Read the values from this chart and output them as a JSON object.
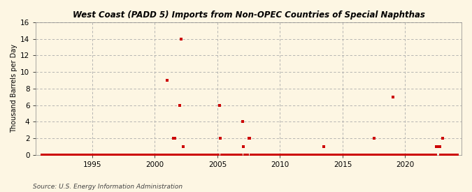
{
  "title": "West Coast (PADD 5) Imports from Non-OPEC Countries of Special Naphthas",
  "ylabel": "Thousand Barrels per Day",
  "source": "Source: U.S. Energy Information Administration",
  "background_color": "#fdf6e3",
  "plot_bg_color": "#fdf6e3",
  "marker_color": "#cc0000",
  "marker_size": 3,
  "ylim": [
    0,
    16
  ],
  "yticks": [
    0,
    2,
    4,
    6,
    8,
    10,
    12,
    14,
    16
  ],
  "xlim_start": 1990.5,
  "xlim_end": 2024.5,
  "xticks": [
    1995,
    2000,
    2005,
    2010,
    2015,
    2020
  ],
  "data_points": [
    [
      1991.0,
      0
    ],
    [
      1991.083,
      0
    ],
    [
      1991.167,
      0
    ],
    [
      1991.25,
      0
    ],
    [
      1991.333,
      0
    ],
    [
      1991.417,
      0
    ],
    [
      1991.5,
      0
    ],
    [
      1991.583,
      0
    ],
    [
      1991.667,
      0
    ],
    [
      1991.75,
      0
    ],
    [
      1991.833,
      0
    ],
    [
      1991.917,
      0
    ],
    [
      1992.0,
      0
    ],
    [
      1992.083,
      0
    ],
    [
      1992.167,
      0
    ],
    [
      1992.25,
      0
    ],
    [
      1992.333,
      0
    ],
    [
      1992.417,
      0
    ],
    [
      1992.5,
      0
    ],
    [
      1992.583,
      0
    ],
    [
      1992.667,
      0
    ],
    [
      1992.75,
      0
    ],
    [
      1992.833,
      0
    ],
    [
      1992.917,
      0
    ],
    [
      1993.0,
      0
    ],
    [
      1993.083,
      0
    ],
    [
      1993.167,
      0
    ],
    [
      1993.25,
      0
    ],
    [
      1993.333,
      0
    ],
    [
      1993.417,
      0
    ],
    [
      1993.5,
      0
    ],
    [
      1993.583,
      0
    ],
    [
      1993.667,
      0
    ],
    [
      1993.75,
      0
    ],
    [
      1993.833,
      0
    ],
    [
      1993.917,
      0
    ],
    [
      1994.0,
      0
    ],
    [
      1994.083,
      0
    ],
    [
      1994.167,
      0
    ],
    [
      1994.25,
      0
    ],
    [
      1994.333,
      0
    ],
    [
      1994.417,
      0
    ],
    [
      1994.5,
      0
    ],
    [
      1994.583,
      0
    ],
    [
      1994.667,
      0
    ],
    [
      1994.75,
      0
    ],
    [
      1994.833,
      0
    ],
    [
      1994.917,
      0
    ],
    [
      1995.0,
      0
    ],
    [
      1995.083,
      0
    ],
    [
      1995.167,
      0
    ],
    [
      1995.25,
      0
    ],
    [
      1995.333,
      0
    ],
    [
      1995.417,
      0
    ],
    [
      1995.5,
      0
    ],
    [
      1995.583,
      0
    ],
    [
      1995.667,
      0
    ],
    [
      1995.75,
      0
    ],
    [
      1995.833,
      0
    ],
    [
      1995.917,
      0
    ],
    [
      1996.0,
      0
    ],
    [
      1996.083,
      0
    ],
    [
      1996.167,
      0
    ],
    [
      1996.25,
      0
    ],
    [
      1996.333,
      0
    ],
    [
      1996.417,
      0
    ],
    [
      1996.5,
      0
    ],
    [
      1996.583,
      0
    ],
    [
      1996.667,
      0
    ],
    [
      1996.75,
      0
    ],
    [
      1996.833,
      0
    ],
    [
      1996.917,
      0
    ],
    [
      1997.0,
      0
    ],
    [
      1997.083,
      0
    ],
    [
      1997.167,
      0
    ],
    [
      1997.25,
      0
    ],
    [
      1997.333,
      0
    ],
    [
      1997.417,
      0
    ],
    [
      1997.5,
      0
    ],
    [
      1997.583,
      0
    ],
    [
      1997.667,
      0
    ],
    [
      1997.75,
      0
    ],
    [
      1997.833,
      0
    ],
    [
      1997.917,
      0
    ],
    [
      1998.0,
      0
    ],
    [
      1998.083,
      0
    ],
    [
      1998.167,
      0
    ],
    [
      1998.25,
      0
    ],
    [
      1998.333,
      0
    ],
    [
      1998.417,
      0
    ],
    [
      1998.5,
      0
    ],
    [
      1998.583,
      0
    ],
    [
      1998.667,
      0
    ],
    [
      1998.75,
      0
    ],
    [
      1998.833,
      0
    ],
    [
      1998.917,
      0
    ],
    [
      1999.0,
      0
    ],
    [
      1999.083,
      0
    ],
    [
      1999.167,
      0
    ],
    [
      1999.25,
      0
    ],
    [
      1999.333,
      0
    ],
    [
      1999.417,
      0
    ],
    [
      1999.5,
      0
    ],
    [
      1999.583,
      0
    ],
    [
      1999.667,
      0
    ],
    [
      1999.75,
      0
    ],
    [
      1999.833,
      0
    ],
    [
      1999.917,
      0
    ],
    [
      2000.0,
      0
    ],
    [
      2000.083,
      0
    ],
    [
      2000.167,
      0
    ],
    [
      2000.25,
      0
    ],
    [
      2000.333,
      0
    ],
    [
      2000.417,
      0
    ],
    [
      2000.5,
      0
    ],
    [
      2000.583,
      0
    ],
    [
      2000.667,
      0
    ],
    [
      2000.75,
      0
    ],
    [
      2000.833,
      0
    ],
    [
      2000.917,
      0
    ],
    [
      2001.0,
      9
    ],
    [
      2001.083,
      0
    ],
    [
      2001.167,
      0
    ],
    [
      2001.25,
      0
    ],
    [
      2001.333,
      0
    ],
    [
      2001.417,
      0
    ],
    [
      2001.5,
      2
    ],
    [
      2001.583,
      2
    ],
    [
      2001.667,
      0
    ],
    [
      2001.75,
      0
    ],
    [
      2001.833,
      0
    ],
    [
      2001.917,
      0
    ],
    [
      2002.0,
      6
    ],
    [
      2002.083,
      14
    ],
    [
      2002.167,
      0
    ],
    [
      2002.25,
      1
    ],
    [
      2002.333,
      0
    ],
    [
      2002.417,
      0
    ],
    [
      2002.5,
      0
    ],
    [
      2002.583,
      0
    ],
    [
      2002.667,
      0
    ],
    [
      2002.75,
      0
    ],
    [
      2002.833,
      0
    ],
    [
      2002.917,
      0
    ],
    [
      2003.0,
      0
    ],
    [
      2003.083,
      0
    ],
    [
      2003.167,
      0
    ],
    [
      2003.25,
      0
    ],
    [
      2003.333,
      0
    ],
    [
      2003.417,
      0
    ],
    [
      2003.5,
      0
    ],
    [
      2003.583,
      0
    ],
    [
      2003.667,
      0
    ],
    [
      2003.75,
      0
    ],
    [
      2003.833,
      0
    ],
    [
      2003.917,
      0
    ],
    [
      2004.0,
      0
    ],
    [
      2004.083,
      0
    ],
    [
      2004.167,
      0
    ],
    [
      2004.25,
      0
    ],
    [
      2004.333,
      0
    ],
    [
      2004.417,
      0
    ],
    [
      2004.5,
      0
    ],
    [
      2004.583,
      0
    ],
    [
      2004.667,
      0
    ],
    [
      2004.75,
      0
    ],
    [
      2004.833,
      0
    ],
    [
      2004.917,
      0
    ],
    [
      2005.0,
      0
    ],
    [
      2005.083,
      0
    ],
    [
      2005.167,
      6
    ],
    [
      2005.25,
      2
    ],
    [
      2005.333,
      0
    ],
    [
      2005.417,
      0
    ],
    [
      2005.5,
      0
    ],
    [
      2005.583,
      0
    ],
    [
      2005.667,
      0
    ],
    [
      2005.75,
      0
    ],
    [
      2005.833,
      0
    ],
    [
      2005.917,
      0
    ],
    [
      2006.0,
      0
    ],
    [
      2006.083,
      0
    ],
    [
      2006.167,
      0
    ],
    [
      2006.25,
      0
    ],
    [
      2006.333,
      0
    ],
    [
      2006.417,
      0
    ],
    [
      2006.5,
      0
    ],
    [
      2006.583,
      0
    ],
    [
      2006.667,
      0
    ],
    [
      2006.75,
      0
    ],
    [
      2006.833,
      0
    ],
    [
      2006.917,
      0
    ],
    [
      2007.0,
      4
    ],
    [
      2007.083,
      1
    ],
    [
      2007.167,
      0
    ],
    [
      2007.25,
      0
    ],
    [
      2007.333,
      0
    ],
    [
      2007.417,
      0
    ],
    [
      2007.5,
      2
    ],
    [
      2007.583,
      2
    ],
    [
      2007.667,
      0
    ],
    [
      2007.75,
      0
    ],
    [
      2007.833,
      0
    ],
    [
      2007.917,
      0
    ],
    [
      2008.0,
      0
    ],
    [
      2008.083,
      0
    ],
    [
      2008.167,
      0
    ],
    [
      2008.25,
      0
    ],
    [
      2008.333,
      0
    ],
    [
      2008.417,
      0
    ],
    [
      2008.5,
      0
    ],
    [
      2008.583,
      0
    ],
    [
      2008.667,
      0
    ],
    [
      2008.75,
      0
    ],
    [
      2008.833,
      0
    ],
    [
      2008.917,
      0
    ],
    [
      2009.0,
      0
    ],
    [
      2009.083,
      0
    ],
    [
      2009.167,
      0
    ],
    [
      2009.25,
      0
    ],
    [
      2009.333,
      0
    ],
    [
      2009.417,
      0
    ],
    [
      2009.5,
      0
    ],
    [
      2009.583,
      0
    ],
    [
      2009.667,
      0
    ],
    [
      2009.75,
      0
    ],
    [
      2009.833,
      0
    ],
    [
      2009.917,
      0
    ],
    [
      2010.0,
      0
    ],
    [
      2010.083,
      0
    ],
    [
      2010.167,
      0
    ],
    [
      2010.25,
      0
    ],
    [
      2010.333,
      0
    ],
    [
      2010.417,
      0
    ],
    [
      2010.5,
      0
    ],
    [
      2010.583,
      0
    ],
    [
      2010.667,
      0
    ],
    [
      2010.75,
      0
    ],
    [
      2010.833,
      0
    ],
    [
      2010.917,
      0
    ],
    [
      2011.0,
      0
    ],
    [
      2011.083,
      0
    ],
    [
      2011.167,
      0
    ],
    [
      2011.25,
      0
    ],
    [
      2011.333,
      0
    ],
    [
      2011.417,
      0
    ],
    [
      2011.5,
      0
    ],
    [
      2011.583,
      0
    ],
    [
      2011.667,
      0
    ],
    [
      2011.75,
      0
    ],
    [
      2011.833,
      0
    ],
    [
      2011.917,
      0
    ],
    [
      2012.0,
      0
    ],
    [
      2012.083,
      0
    ],
    [
      2012.167,
      0
    ],
    [
      2012.25,
      0
    ],
    [
      2012.333,
      0
    ],
    [
      2012.417,
      0
    ],
    [
      2012.5,
      0
    ],
    [
      2012.583,
      0
    ],
    [
      2012.667,
      0
    ],
    [
      2012.75,
      0
    ],
    [
      2012.833,
      0
    ],
    [
      2012.917,
      0
    ],
    [
      2013.0,
      0
    ],
    [
      2013.083,
      0
    ],
    [
      2013.167,
      0
    ],
    [
      2013.25,
      0
    ],
    [
      2013.333,
      0
    ],
    [
      2013.417,
      0
    ],
    [
      2013.5,
      1
    ],
    [
      2013.583,
      0
    ],
    [
      2013.667,
      0
    ],
    [
      2013.75,
      0
    ],
    [
      2013.833,
      0
    ],
    [
      2013.917,
      0
    ],
    [
      2014.0,
      0
    ],
    [
      2014.083,
      0
    ],
    [
      2014.167,
      0
    ],
    [
      2014.25,
      0
    ],
    [
      2014.333,
      0
    ],
    [
      2014.417,
      0
    ],
    [
      2014.5,
      0
    ],
    [
      2014.583,
      0
    ],
    [
      2014.667,
      0
    ],
    [
      2014.75,
      0
    ],
    [
      2014.833,
      0
    ],
    [
      2014.917,
      0
    ],
    [
      2015.0,
      0
    ],
    [
      2015.083,
      0
    ],
    [
      2015.167,
      0
    ],
    [
      2015.25,
      0
    ],
    [
      2015.333,
      0
    ],
    [
      2015.417,
      0
    ],
    [
      2015.5,
      0
    ],
    [
      2015.583,
      0
    ],
    [
      2015.667,
      0
    ],
    [
      2015.75,
      0
    ],
    [
      2015.833,
      0
    ],
    [
      2015.917,
      0
    ],
    [
      2016.0,
      0
    ],
    [
      2016.083,
      0
    ],
    [
      2016.167,
      0
    ],
    [
      2016.25,
      0
    ],
    [
      2016.333,
      0
    ],
    [
      2016.417,
      0
    ],
    [
      2016.5,
      0
    ],
    [
      2016.583,
      0
    ],
    [
      2016.667,
      0
    ],
    [
      2016.75,
      0
    ],
    [
      2016.833,
      0
    ],
    [
      2016.917,
      0
    ],
    [
      2017.0,
      0
    ],
    [
      2017.083,
      0
    ],
    [
      2017.167,
      0
    ],
    [
      2017.25,
      0
    ],
    [
      2017.333,
      0
    ],
    [
      2017.417,
      0
    ],
    [
      2017.5,
      2
    ],
    [
      2017.583,
      0
    ],
    [
      2017.667,
      0
    ],
    [
      2017.75,
      0
    ],
    [
      2017.833,
      0
    ],
    [
      2017.917,
      0
    ],
    [
      2018.0,
      0
    ],
    [
      2018.083,
      0
    ],
    [
      2018.167,
      0
    ],
    [
      2018.25,
      0
    ],
    [
      2018.333,
      0
    ],
    [
      2018.417,
      0
    ],
    [
      2018.5,
      0
    ],
    [
      2018.583,
      0
    ],
    [
      2018.667,
      0
    ],
    [
      2018.75,
      0
    ],
    [
      2018.833,
      0
    ],
    [
      2018.917,
      0
    ],
    [
      2019.0,
      7
    ],
    [
      2019.083,
      0
    ],
    [
      2019.167,
      0
    ],
    [
      2019.25,
      0
    ],
    [
      2019.333,
      0
    ],
    [
      2019.417,
      0
    ],
    [
      2019.5,
      0
    ],
    [
      2019.583,
      0
    ],
    [
      2019.667,
      0
    ],
    [
      2019.75,
      0
    ],
    [
      2019.833,
      0
    ],
    [
      2019.917,
      0
    ],
    [
      2020.0,
      0
    ],
    [
      2020.083,
      0
    ],
    [
      2020.167,
      0
    ],
    [
      2020.25,
      0
    ],
    [
      2020.333,
      0
    ],
    [
      2020.417,
      0
    ],
    [
      2020.5,
      0
    ],
    [
      2020.583,
      0
    ],
    [
      2020.667,
      0
    ],
    [
      2020.75,
      0
    ],
    [
      2020.833,
      0
    ],
    [
      2020.917,
      0
    ],
    [
      2021.0,
      0
    ],
    [
      2021.083,
      0
    ],
    [
      2021.167,
      0
    ],
    [
      2021.25,
      0
    ],
    [
      2021.333,
      0
    ],
    [
      2021.417,
      0
    ],
    [
      2021.5,
      0
    ],
    [
      2021.583,
      0
    ],
    [
      2021.667,
      0
    ],
    [
      2021.75,
      0
    ],
    [
      2021.833,
      0
    ],
    [
      2021.917,
      0
    ],
    [
      2022.0,
      0
    ],
    [
      2022.083,
      0
    ],
    [
      2022.167,
      0
    ],
    [
      2022.25,
      0
    ],
    [
      2022.333,
      0
    ],
    [
      2022.417,
      0
    ],
    [
      2022.5,
      1
    ],
    [
      2022.583,
      1
    ],
    [
      2022.667,
      1
    ],
    [
      2022.75,
      1
    ],
    [
      2022.833,
      0
    ],
    [
      2022.917,
      0
    ],
    [
      2023.0,
      2
    ],
    [
      2023.083,
      0
    ],
    [
      2023.167,
      0
    ],
    [
      2023.25,
      0
    ],
    [
      2023.333,
      0
    ],
    [
      2023.417,
      0
    ],
    [
      2023.5,
      0
    ],
    [
      2023.583,
      0
    ],
    [
      2023.667,
      0
    ],
    [
      2023.75,
      0
    ],
    [
      2023.833,
      0
    ],
    [
      2023.917,
      0
    ],
    [
      2024.0,
      0
    ],
    [
      2024.083,
      0
    ],
    [
      2024.167,
      0
    ]
  ]
}
